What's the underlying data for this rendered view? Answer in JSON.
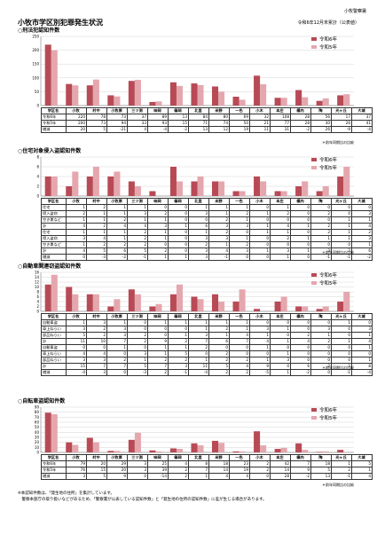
{
  "header": {
    "brand": "小牧警察署",
    "title": "小牧市学区別犯罪発生状況",
    "asof": "令和6年12月末累計（公表値）"
  },
  "colors": {
    "y6": "#b84a56",
    "y5": "#e5a7ae"
  },
  "districts": [
    "小牧",
    "村中",
    "小牧原",
    "三ツ渕",
    "味岡",
    "篠岡",
    "北里",
    "米野",
    "一色",
    "小木",
    "本庄",
    "横内",
    "陶",
    "光ヶ丘",
    "大城"
  ],
  "sections": [
    {
      "title": "○刑法犯認知件数",
      "legend": [
        "令和6年",
        "令和5年"
      ],
      "rows": [
        {
          "label": "令和6年",
          "values": [
            "220",
            "78",
            "73",
            "37",
            "89",
            "13",
            "84",
            "80",
            "69",
            "32",
            "108",
            "28",
            "56",
            "17",
            "37"
          ]
        },
        {
          "label": "令和5年",
          "values": [
            "200",
            "73",
            "94",
            "33",
            "93",
            "15",
            "71",
            "74",
            "50",
            "21",
            "77",
            "28",
            "30",
            "26",
            "41"
          ]
        },
        {
          "label": "増減",
          "values": [
            "20",
            "5",
            "-21",
            "4",
            "-4",
            "-2",
            "13",
            "12",
            "19",
            "11",
            "31",
            "-2",
            "26",
            "-9",
            "-4"
          ]
        }
      ],
      "note": "＊前年同期比の比較"
    },
    {
      "title": "○住宅対象侵入盗認知件数",
      "legend": [
        "令和6年",
        "令和5年"
      ],
      "rows": [
        {
          "group": "",
          "label": "住宅",
          "values": [
            "1",
            "2",
            "1",
            "1",
            "0",
            "0",
            "1",
            "1",
            "1",
            "0",
            "1",
            "0",
            "0",
            "0",
            "0"
          ]
        },
        {
          "group": "",
          "label": "侵入盗窃",
          "values": [
            "2",
            "1",
            "1",
            "3",
            "2",
            "0",
            "3",
            "1",
            "2",
            "1",
            "2",
            "0",
            "2",
            "0",
            "3"
          ]
        },
        {
          "group": "",
          "label": "空き巣など",
          "values": [
            "1",
            "1",
            "2",
            "1",
            "1",
            "0",
            "0",
            "2",
            "1",
            "0",
            "0",
            "0",
            "0",
            "1",
            "1"
          ]
        },
        {
          "group": "",
          "label": "計",
          "values": [
            "4",
            "2",
            "4",
            "4",
            "3",
            "1",
            "6",
            "3",
            "3",
            "1",
            "4",
            "1",
            "2",
            "1",
            "4"
          ]
        },
        {
          "group": "",
          "label": "住宅",
          "values": [
            "1",
            "1",
            "1",
            "2",
            "1",
            "0",
            "1",
            "2",
            "0",
            "1",
            "1",
            "0",
            "2",
            "1",
            "2"
          ]
        },
        {
          "group": "",
          "label": "侵入盗窃",
          "values": [
            "3",
            "4",
            "1",
            "2",
            "1",
            "0",
            "3",
            "3",
            "1",
            "0",
            "2",
            "1",
            "1",
            "1",
            "3"
          ]
        },
        {
          "group": "",
          "label": "空き巣など",
          "values": [
            "1",
            "2",
            "2",
            "2",
            "0",
            "0",
            "2",
            "1",
            "2",
            "0",
            "0",
            "0",
            "0",
            "0",
            "1"
          ]
        },
        {
          "group": "",
          "label": "計",
          "values": [
            "4",
            "5",
            "6",
            "5",
            "2",
            "0",
            "3",
            "4",
            "3",
            "1",
            "3",
            "1",
            "3",
            "2",
            "6"
          ]
        },
        {
          "group": "",
          "label": "増減",
          "values": [
            "0",
            "-3",
            "-2",
            "-1",
            "1",
            "1",
            "3",
            "-1",
            "0",
            "0",
            "1",
            "0",
            "-1",
            "-1",
            "-2"
          ]
        }
      ],
      "note": "＊前年同期比の比較"
    },
    {
      "title": "○自動車関連窃盗認知件数",
      "legend": [
        "令和6年",
        "令和5年"
      ],
      "rows": [
        {
          "group": "",
          "label": "自動車盗",
          "values": [
            "1",
            "3",
            "1",
            "0",
            "1",
            "1",
            "1",
            "1",
            "1",
            "0",
            "0",
            "0",
            "0",
            "1",
            "0"
          ]
        },
        {
          "group": "",
          "label": "車上ねらい",
          "values": [
            "3",
            "2",
            "3",
            "0",
            "0",
            "0",
            "1",
            "2",
            "1",
            "3",
            "1",
            "0",
            "3",
            "0",
            "3"
          ]
        },
        {
          "group": "",
          "label": "部品ねらい",
          "values": [
            "5",
            "2",
            "3",
            "2",
            "0",
            "1",
            "3",
            "1",
            "4",
            "1",
            "0",
            "2",
            "1",
            "0",
            "1"
          ]
        },
        {
          "group": "",
          "label": "計",
          "values": [
            "11",
            "10",
            "7",
            "2",
            "9",
            "2",
            "7",
            "6",
            "7",
            "4",
            "1",
            "4",
            "2",
            "1",
            "4"
          ]
        },
        {
          "group": "",
          "label": "自動車盗",
          "values": [
            "0",
            "0",
            "1",
            "0",
            "1",
            "1",
            "2",
            "0",
            "0",
            "1",
            "0",
            "0",
            "0",
            "0",
            "1"
          ]
        },
        {
          "group": "",
          "label": "車上ねらい",
          "values": [
            "4",
            "4",
            "0",
            "3",
            "1",
            "5",
            "0",
            "2",
            "0",
            "0",
            "1",
            "0",
            "0",
            "0",
            "0"
          ]
        },
        {
          "group": "",
          "label": "部品ねらい",
          "values": [
            "3",
            "3",
            "2",
            "1",
            "2",
            "2",
            "1",
            "2",
            "2",
            "1",
            "3",
            "0",
            "0",
            "0",
            "1"
          ]
        },
        {
          "group": "",
          "label": "計",
          "values": [
            "15",
            "7",
            "7",
            "5",
            "7",
            "3",
            "11",
            "5",
            "4",
            "9",
            "0",
            "6",
            "2",
            "2",
            "8"
          ]
        },
        {
          "group": "",
          "label": "増減",
          "values": [
            "-4",
            "3",
            "0",
            "-3",
            "2",
            "-1",
            "-4",
            "2",
            "2",
            "-5",
            "1",
            "-2",
            "0",
            "-1",
            "-4"
          ]
        }
      ],
      "note": "＊前年同期比の比較"
    },
    {
      "title": "○自転車盗認知件数",
      "legend": [
        "令和6年",
        "令和5年"
      ],
      "rows": [
        {
          "label": "令和6年",
          "values": [
            "79",
            "20",
            "29",
            "3",
            "25",
            "4",
            "8",
            "18",
            "23",
            "2",
            "42",
            "7",
            "18",
            "1",
            "5"
          ]
        },
        {
          "label": "令和5年",
          "values": [
            "76",
            "15",
            "20",
            "3",
            "39",
            "2",
            "7",
            "14",
            "19",
            "2",
            "14",
            "9",
            "5",
            "2",
            "1"
          ]
        },
        {
          "label": "増減",
          "values": [
            "3",
            "5",
            "9",
            "0",
            "-14",
            "2",
            "1",
            "4",
            "4",
            "0",
            "28",
            "-2",
            "13",
            "-1",
            "4"
          ]
        }
      ],
      "note": "＊前年同期比の比較"
    }
  ],
  "chart_data": [
    {
      "type": "bar",
      "title": "○刑法犯認知件数",
      "categories": [
        "小牧",
        "村中",
        "小牧原",
        "三ツ渕",
        "味岡",
        "篠岡",
        "北里",
        "米野",
        "一色",
        "小木",
        "本庄",
        "横内",
        "陶",
        "光ヶ丘",
        "大城"
      ],
      "ylim": [
        0,
        250
      ],
      "yticks": [
        0,
        50,
        100,
        150,
        200,
        250
      ],
      "series": [
        {
          "name": "令和6年",
          "values": [
            220,
            78,
            73,
            37,
            89,
            13,
            84,
            80,
            69,
            32,
            108,
            28,
            56,
            17,
            37
          ]
        },
        {
          "name": "令和5年",
          "values": [
            200,
            73,
            94,
            33,
            93,
            15,
            71,
            74,
            50,
            21,
            77,
            28,
            30,
            26,
            41
          ]
        }
      ]
    },
    {
      "type": "bar",
      "title": "○住宅対象侵入盗認知件数",
      "categories": [
        "小牧",
        "村中",
        "小牧原",
        "三ツ渕",
        "味岡",
        "篠岡",
        "北里",
        "米野",
        "一色",
        "小木",
        "本庄",
        "横内",
        "陶",
        "光ヶ丘",
        "大城"
      ],
      "ylim": [
        0,
        8
      ],
      "yticks": [
        0,
        2,
        4,
        6,
        8
      ],
      "series": [
        {
          "name": "令和6年",
          "values": [
            4,
            2,
            4,
            4,
            3,
            1,
            6,
            3,
            3,
            1,
            4,
            1,
            2,
            1,
            4
          ]
        },
        {
          "name": "令和5年",
          "values": [
            4,
            5,
            6,
            5,
            2,
            0,
            3,
            4,
            3,
            1,
            3,
            1,
            3,
            2,
            6
          ]
        }
      ]
    },
    {
      "type": "bar",
      "title": "○自動車関連窃盗認知件数",
      "categories": [
        "小牧",
        "村中",
        "小牧原",
        "三ツ渕",
        "味岡",
        "篠岡",
        "北里",
        "米野",
        "一色",
        "小木",
        "本庄",
        "横内",
        "陶",
        "光ヶ丘",
        "大城"
      ],
      "ylim": [
        0,
        16
      ],
      "yticks": [
        0,
        2,
        4,
        6,
        8,
        10,
        12,
        14,
        16
      ],
      "series": [
        {
          "name": "令和6年",
          "values": [
            11,
            10,
            7,
            2,
            9,
            2,
            7,
            6,
            7,
            4,
            1,
            4,
            2,
            1,
            4
          ]
        },
        {
          "name": "令和5年",
          "values": [
            15,
            7,
            7,
            5,
            7,
            3,
            11,
            5,
            4,
            9,
            0,
            6,
            2,
            2,
            8
          ]
        }
      ]
    },
    {
      "type": "bar",
      "title": "○自転車盗認知件数",
      "categories": [
        "小牧",
        "村中",
        "小牧原",
        "三ツ渕",
        "味岡",
        "篠岡",
        "北里",
        "米野",
        "一色",
        "小木",
        "本庄",
        "横内",
        "陶",
        "光ヶ丘",
        "大城"
      ],
      "ylim": [
        0,
        90
      ],
      "yticks": [
        0,
        10,
        20,
        30,
        40,
        50,
        60,
        70,
        80,
        90
      ],
      "series": [
        {
          "name": "令和6年",
          "values": [
            79,
            20,
            29,
            3,
            25,
            4,
            8,
            18,
            23,
            2,
            42,
            7,
            18,
            1,
            5
          ]
        },
        {
          "name": "令和5年",
          "values": [
            76,
            15,
            20,
            3,
            39,
            2,
            7,
            14,
            19,
            2,
            14,
            9,
            5,
            2,
            1
          ]
        }
      ]
    }
  ],
  "footnotes": [
    "※本認知件数は、「発生地の住所」を集計しています。",
    "　警察本部庁の取り扱いなどがあるため、「警察署が公表している認知件数」と「発生地の住所の認知件数」に差が生じる場合があります。"
  ]
}
